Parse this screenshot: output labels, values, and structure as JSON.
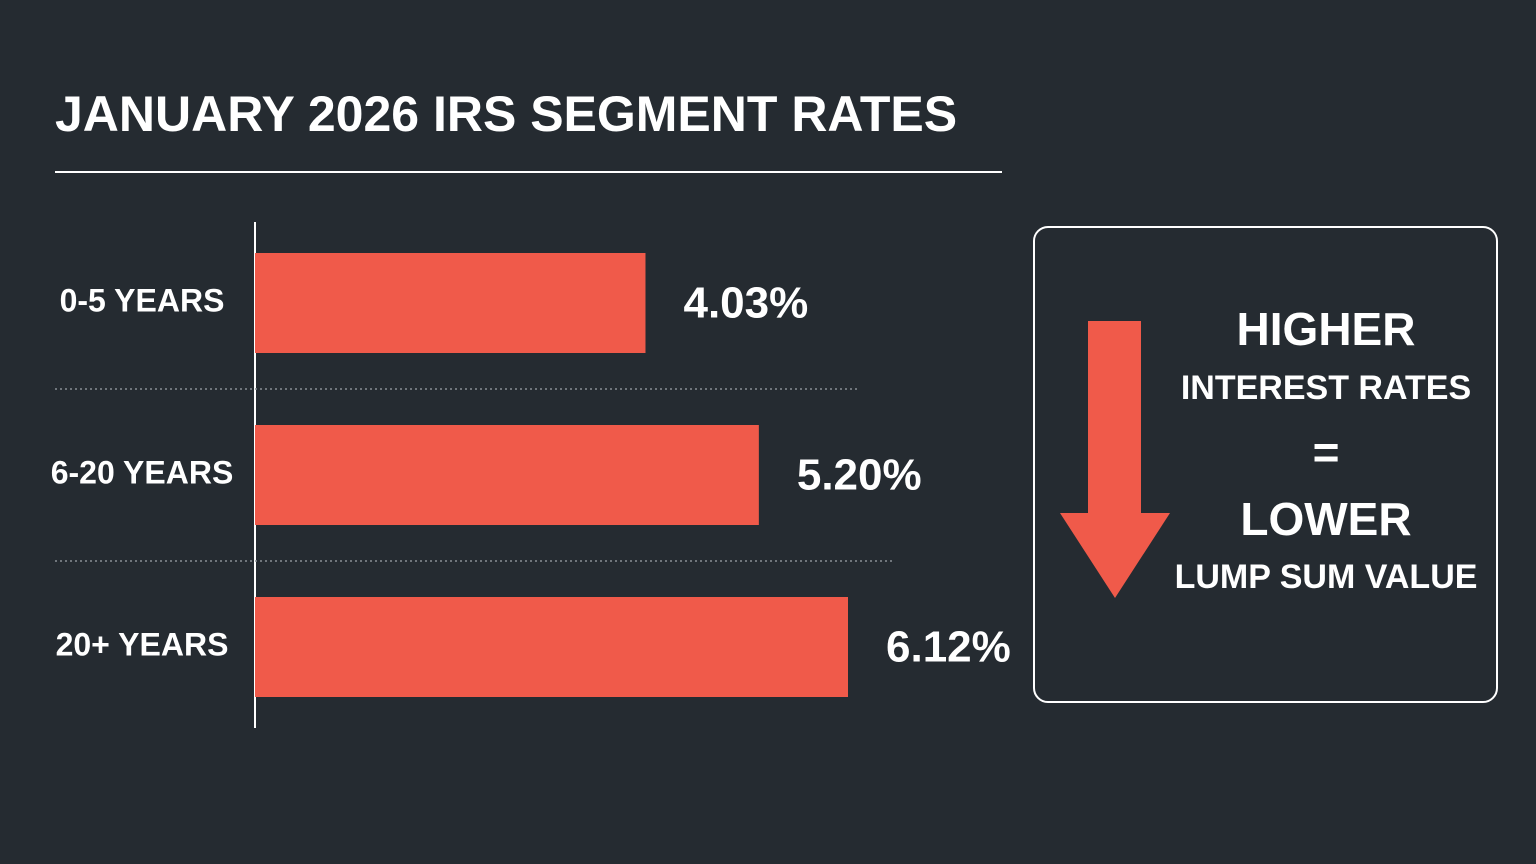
{
  "chart_data": {
    "type": "bar",
    "orientation": "horizontal",
    "title": "JANUARY 2026 IRS SEGMENT RATES",
    "categories": [
      "0-5 YEARS",
      "6-20 YEARS",
      "20+ YEARS"
    ],
    "values": [
      4.03,
      5.2,
      6.12
    ],
    "value_labels": [
      "4.03%",
      "5.20%",
      "6.12%"
    ],
    "color": "#f05a4a",
    "annotations": [
      "HIGHER",
      "INTEREST RATES",
      "=",
      "LOWER",
      "LUMP SUM VALUE"
    ]
  }
}
